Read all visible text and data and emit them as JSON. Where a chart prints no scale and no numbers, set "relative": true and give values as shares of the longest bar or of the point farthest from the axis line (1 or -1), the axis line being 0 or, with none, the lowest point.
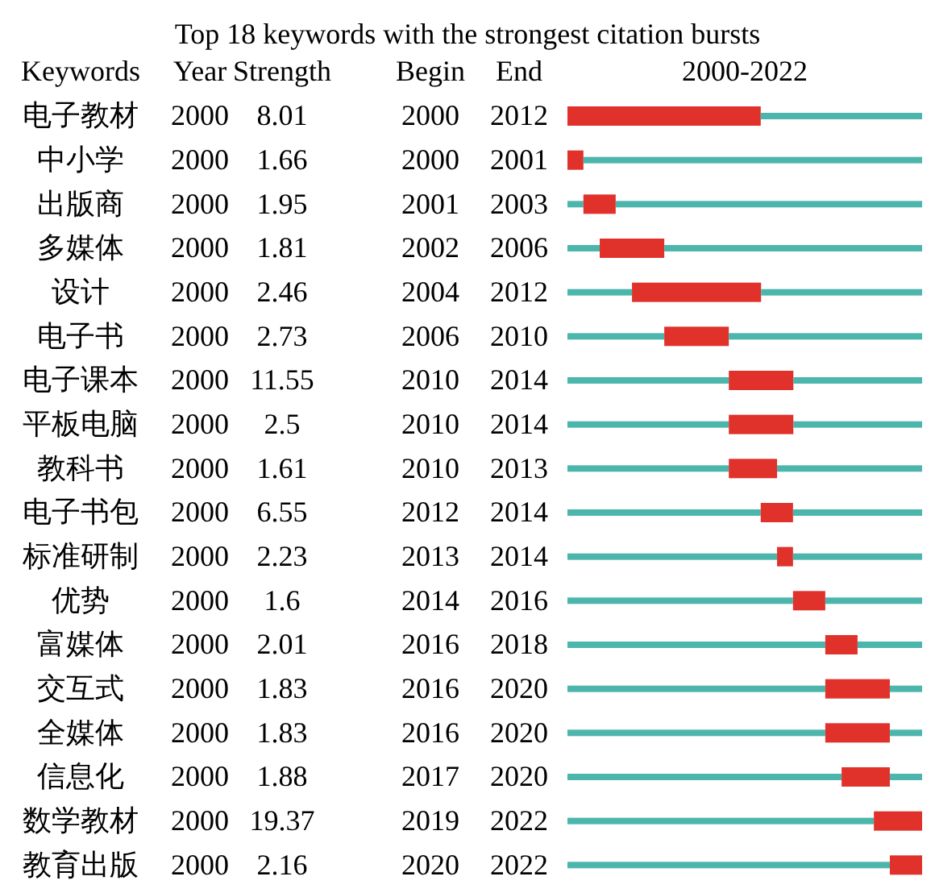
{
  "chart_data": {
    "type": "bar",
    "orientation": "horizontal",
    "stacked": true,
    "relative": true,
    "title": "Top 18 keywords with the strongest citation bursts",
    "xlabel": "2000-2022",
    "tick_labels": "y",
    "categories": [
      "电子教材",
      "中小学",
      "出版商",
      "多媒体",
      "设计",
      "电子书",
      "电子课本",
      "平板电脑",
      "教科书",
      "电子书包",
      "标准研制",
      "优势",
      "富媒体",
      "交互式",
      "全媒体",
      "信息化",
      "数学教材",
      "教育出版"
    ],
    "series": [
      {
        "color": "#4db6ac",
        "values": [
          0,
          0,
          0.045,
          0.091,
          0.182,
          0.273,
          0.455,
          0.455,
          0.455,
          0.545,
          0.591,
          0.636,
          0.727,
          0.727,
          0.727,
          0.773,
          0.864,
          0.909
        ]
      },
      {
        "color": "#e0312b",
        "values": [
          0.545,
          0.045,
          0.091,
          0.182,
          0.364,
          0.182,
          0.182,
          0.182,
          0.136,
          0.091,
          0.045,
          0.091,
          0.091,
          0.182,
          0.182,
          0.136,
          0.136,
          0.091
        ]
      },
      {
        "color": "#4db6ac",
        "values": [
          0.455,
          0.955,
          0.864,
          0.727,
          0.454,
          0.545,
          0.363,
          0.363,
          0.409,
          0.364,
          0.364,
          0.273,
          0.182,
          0.091,
          0.091,
          0.091,
          0,
          0
        ]
      }
    ],
    "annotations": [
      "Keywords",
      "Year",
      "Strength",
      "Begin",
      "End",
      "2000",
      "8.01",
      "2000",
      "2012",
      "2000",
      "1.66",
      "2000",
      "2001",
      "2000",
      "1.95",
      "2001",
      "2003",
      "2000",
      "1.81",
      "2002",
      "2006",
      "2000",
      "2.46",
      "2004",
      "2012",
      "2000",
      "2.73",
      "2006",
      "2010",
      "2000",
      "11.55",
      "2010",
      "2014",
      "2000",
      "2.5",
      "2010",
      "2014",
      "2000",
      "1.61",
      "2010",
      "2013",
      "2000",
      "6.55",
      "2012",
      "2014",
      "2000",
      "2.23",
      "2013",
      "2014",
      "2000",
      "1.6",
      "2014",
      "2016",
      "2000",
      "2.01",
      "2016",
      "2018",
      "2000",
      "1.83",
      "2016",
      "2020",
      "2000",
      "1.83",
      "2016",
      "2020",
      "2000",
      "1.88",
      "2017",
      "2020",
      "2000",
      "19.37",
      "2019",
      "2022",
      "2000",
      "2.16",
      "2020",
      "2022"
    ]
  }
}
